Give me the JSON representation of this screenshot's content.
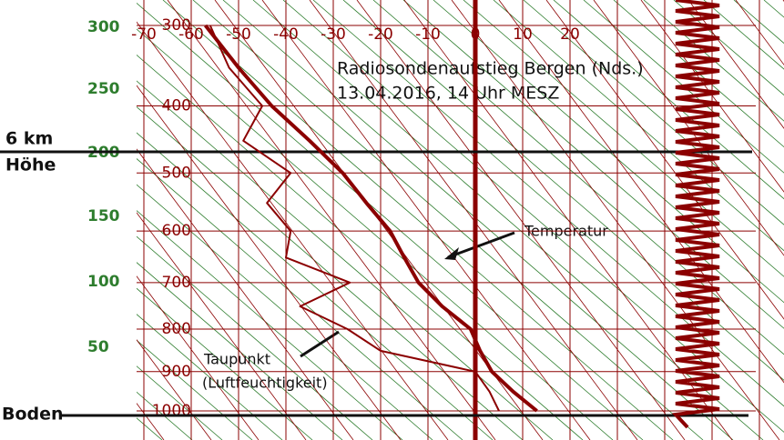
{
  "chart_data": {
    "type": "sounding",
    "title": "Radiosondenaufstieg Bergen (Nds.)",
    "subtitle": "13.04.2016, 14 Uhr MESZ",
    "levels": [
      1000,
      950,
      900,
      850,
      800,
      750,
      700,
      650,
      600,
      550,
      500,
      450,
      400,
      350,
      300
    ],
    "series": [
      {
        "name": "Temperatur",
        "color": "#8b0000",
        "values": [
          13,
          8,
          3.5,
          1,
          -1,
          -7,
          -12,
          -15,
          -18,
          -23,
          -28,
          -35,
          -43,
          -50,
          -57
        ]
      },
      {
        "name": "Taupunkt",
        "color": "#8b0000",
        "values": [
          5,
          3,
          0,
          -20,
          -27,
          -37,
          -26.5,
          -40,
          -39,
          -44,
          -39,
          -49,
          -45,
          -52,
          -56
        ]
      }
    ],
    "annotation": "(Luftfeuchtigkeit)",
    "xlim": [
      -70,
      20
    ],
    "xticks": [
      -70,
      -60,
      -50,
      -40,
      -30,
      -20,
      -10,
      0,
      10,
      20
    ],
    "ylim": [
      1000,
      300
    ],
    "yticks": [
      300,
      400,
      500,
      600,
      700,
      800,
      900,
      1000
    ],
    "height_labels": [
      300,
      250,
      200,
      150,
      100,
      50
    ],
    "markers": [
      {
        "label": "6 km",
        "label2": "Höhe"
      },
      {
        "label": "Boden"
      }
    ],
    "grid": true
  }
}
